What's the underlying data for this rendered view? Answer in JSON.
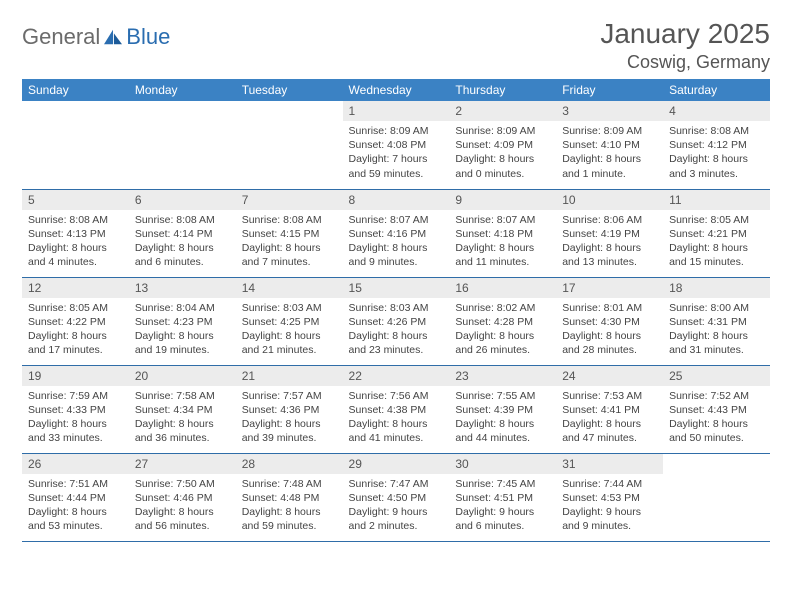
{
  "brand": {
    "text_a": "General",
    "text_b": "Blue"
  },
  "title": "January 2025",
  "location": "Coswig, Germany",
  "colors": {
    "header_bg": "#3b82c4",
    "header_text": "#ffffff",
    "daynum_bg": "#ececec",
    "row_border": "#2f6da8",
    "brand_gray": "#6b6b6b",
    "brand_blue": "#2a6db0"
  },
  "weekdays": [
    "Sunday",
    "Monday",
    "Tuesday",
    "Wednesday",
    "Thursday",
    "Friday",
    "Saturday"
  ],
  "weeks": [
    [
      null,
      null,
      null,
      {
        "n": "1",
        "sr": "8:09 AM",
        "ss": "4:08 PM",
        "dl": "7 hours and 59 minutes."
      },
      {
        "n": "2",
        "sr": "8:09 AM",
        "ss": "4:09 PM",
        "dl": "8 hours and 0 minutes."
      },
      {
        "n": "3",
        "sr": "8:09 AM",
        "ss": "4:10 PM",
        "dl": "8 hours and 1 minute."
      },
      {
        "n": "4",
        "sr": "8:08 AM",
        "ss": "4:12 PM",
        "dl": "8 hours and 3 minutes."
      }
    ],
    [
      {
        "n": "5",
        "sr": "8:08 AM",
        "ss": "4:13 PM",
        "dl": "8 hours and 4 minutes."
      },
      {
        "n": "6",
        "sr": "8:08 AM",
        "ss": "4:14 PM",
        "dl": "8 hours and 6 minutes."
      },
      {
        "n": "7",
        "sr": "8:08 AM",
        "ss": "4:15 PM",
        "dl": "8 hours and 7 minutes."
      },
      {
        "n": "8",
        "sr": "8:07 AM",
        "ss": "4:16 PM",
        "dl": "8 hours and 9 minutes."
      },
      {
        "n": "9",
        "sr": "8:07 AM",
        "ss": "4:18 PM",
        "dl": "8 hours and 11 minutes."
      },
      {
        "n": "10",
        "sr": "8:06 AM",
        "ss": "4:19 PM",
        "dl": "8 hours and 13 minutes."
      },
      {
        "n": "11",
        "sr": "8:05 AM",
        "ss": "4:21 PM",
        "dl": "8 hours and 15 minutes."
      }
    ],
    [
      {
        "n": "12",
        "sr": "8:05 AM",
        "ss": "4:22 PM",
        "dl": "8 hours and 17 minutes."
      },
      {
        "n": "13",
        "sr": "8:04 AM",
        "ss": "4:23 PM",
        "dl": "8 hours and 19 minutes."
      },
      {
        "n": "14",
        "sr": "8:03 AM",
        "ss": "4:25 PM",
        "dl": "8 hours and 21 minutes."
      },
      {
        "n": "15",
        "sr": "8:03 AM",
        "ss": "4:26 PM",
        "dl": "8 hours and 23 minutes."
      },
      {
        "n": "16",
        "sr": "8:02 AM",
        "ss": "4:28 PM",
        "dl": "8 hours and 26 minutes."
      },
      {
        "n": "17",
        "sr": "8:01 AM",
        "ss": "4:30 PM",
        "dl": "8 hours and 28 minutes."
      },
      {
        "n": "18",
        "sr": "8:00 AM",
        "ss": "4:31 PM",
        "dl": "8 hours and 31 minutes."
      }
    ],
    [
      {
        "n": "19",
        "sr": "7:59 AM",
        "ss": "4:33 PM",
        "dl": "8 hours and 33 minutes."
      },
      {
        "n": "20",
        "sr": "7:58 AM",
        "ss": "4:34 PM",
        "dl": "8 hours and 36 minutes."
      },
      {
        "n": "21",
        "sr": "7:57 AM",
        "ss": "4:36 PM",
        "dl": "8 hours and 39 minutes."
      },
      {
        "n": "22",
        "sr": "7:56 AM",
        "ss": "4:38 PM",
        "dl": "8 hours and 41 minutes."
      },
      {
        "n": "23",
        "sr": "7:55 AM",
        "ss": "4:39 PM",
        "dl": "8 hours and 44 minutes."
      },
      {
        "n": "24",
        "sr": "7:53 AM",
        "ss": "4:41 PM",
        "dl": "8 hours and 47 minutes."
      },
      {
        "n": "25",
        "sr": "7:52 AM",
        "ss": "4:43 PM",
        "dl": "8 hours and 50 minutes."
      }
    ],
    [
      {
        "n": "26",
        "sr": "7:51 AM",
        "ss": "4:44 PM",
        "dl": "8 hours and 53 minutes."
      },
      {
        "n": "27",
        "sr": "7:50 AM",
        "ss": "4:46 PM",
        "dl": "8 hours and 56 minutes."
      },
      {
        "n": "28",
        "sr": "7:48 AM",
        "ss": "4:48 PM",
        "dl": "8 hours and 59 minutes."
      },
      {
        "n": "29",
        "sr": "7:47 AM",
        "ss": "4:50 PM",
        "dl": "9 hours and 2 minutes."
      },
      {
        "n": "30",
        "sr": "7:45 AM",
        "ss": "4:51 PM",
        "dl": "9 hours and 6 minutes."
      },
      {
        "n": "31",
        "sr": "7:44 AM",
        "ss": "4:53 PM",
        "dl": "9 hours and 9 minutes."
      },
      null
    ]
  ],
  "labels": {
    "sunrise": "Sunrise:",
    "sunset": "Sunset:",
    "daylight": "Daylight:"
  }
}
